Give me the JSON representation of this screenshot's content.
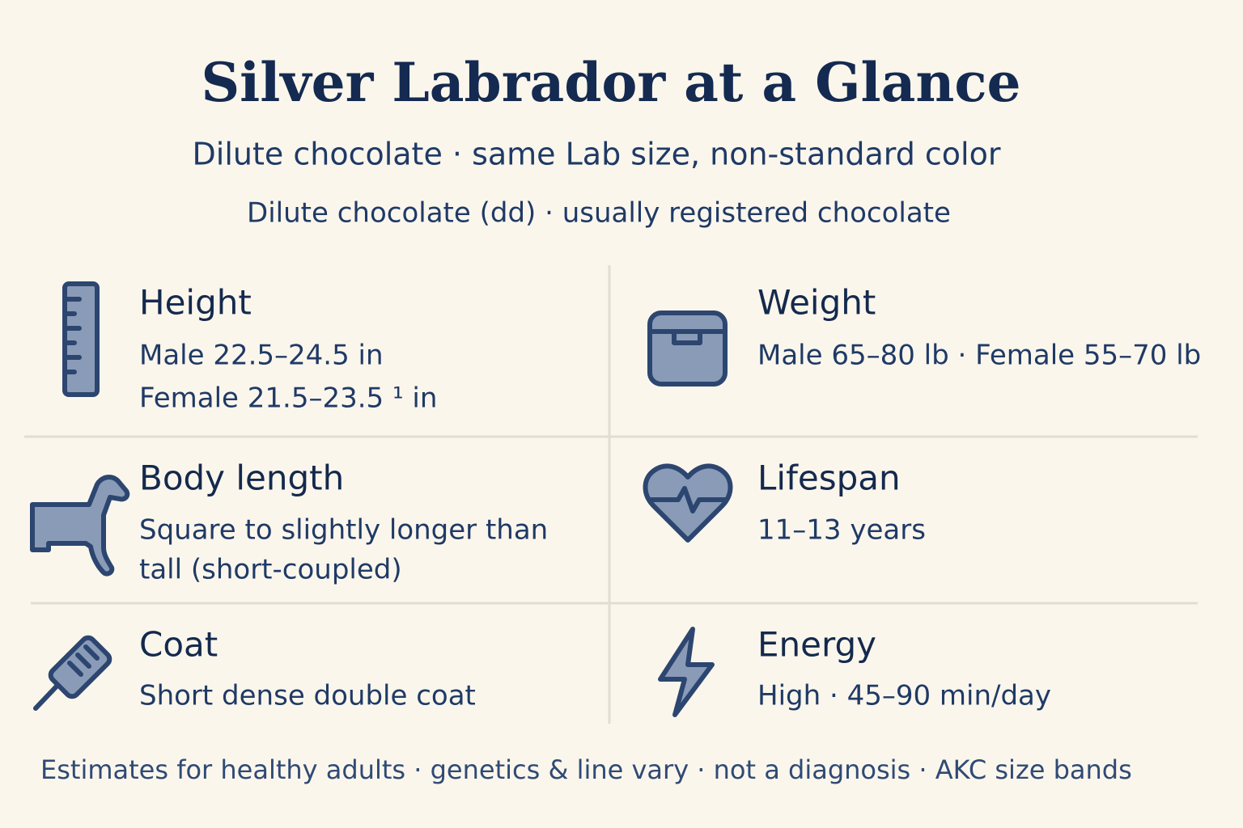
{
  "header": {
    "title": "Silver Labrador at a Glance",
    "subtitle": "Dilute chocolate · same Lab size, non-standard color",
    "note": "Dilute chocolate (dd) · usually registered chocolate"
  },
  "cards": [
    {
      "label": "Height",
      "lines": [
        "Male 22.5–24.5 in",
        "Female 21.5–23.5 ¹ in"
      ]
    },
    {
      "label": "Weight",
      "lines": [
        "Male 65–80 lb · Female 55–70 lb"
      ]
    },
    {
      "label": "Body length",
      "lines": [
        "Square to slightly longer than",
        "tall (short-coupled)"
      ]
    },
    {
      "label": "Lifespan",
      "lines": [
        "11–13 years"
      ]
    },
    {
      "label": "Coat",
      "lines": [
        "Short dense double coat"
      ]
    },
    {
      "label": "Energy",
      "lines": [
        "High · 45–90 min/day"
      ]
    }
  ],
  "footer": "Estimates for healthy adults · genetics & line vary · not a diagnosis · AKC size bands"
}
